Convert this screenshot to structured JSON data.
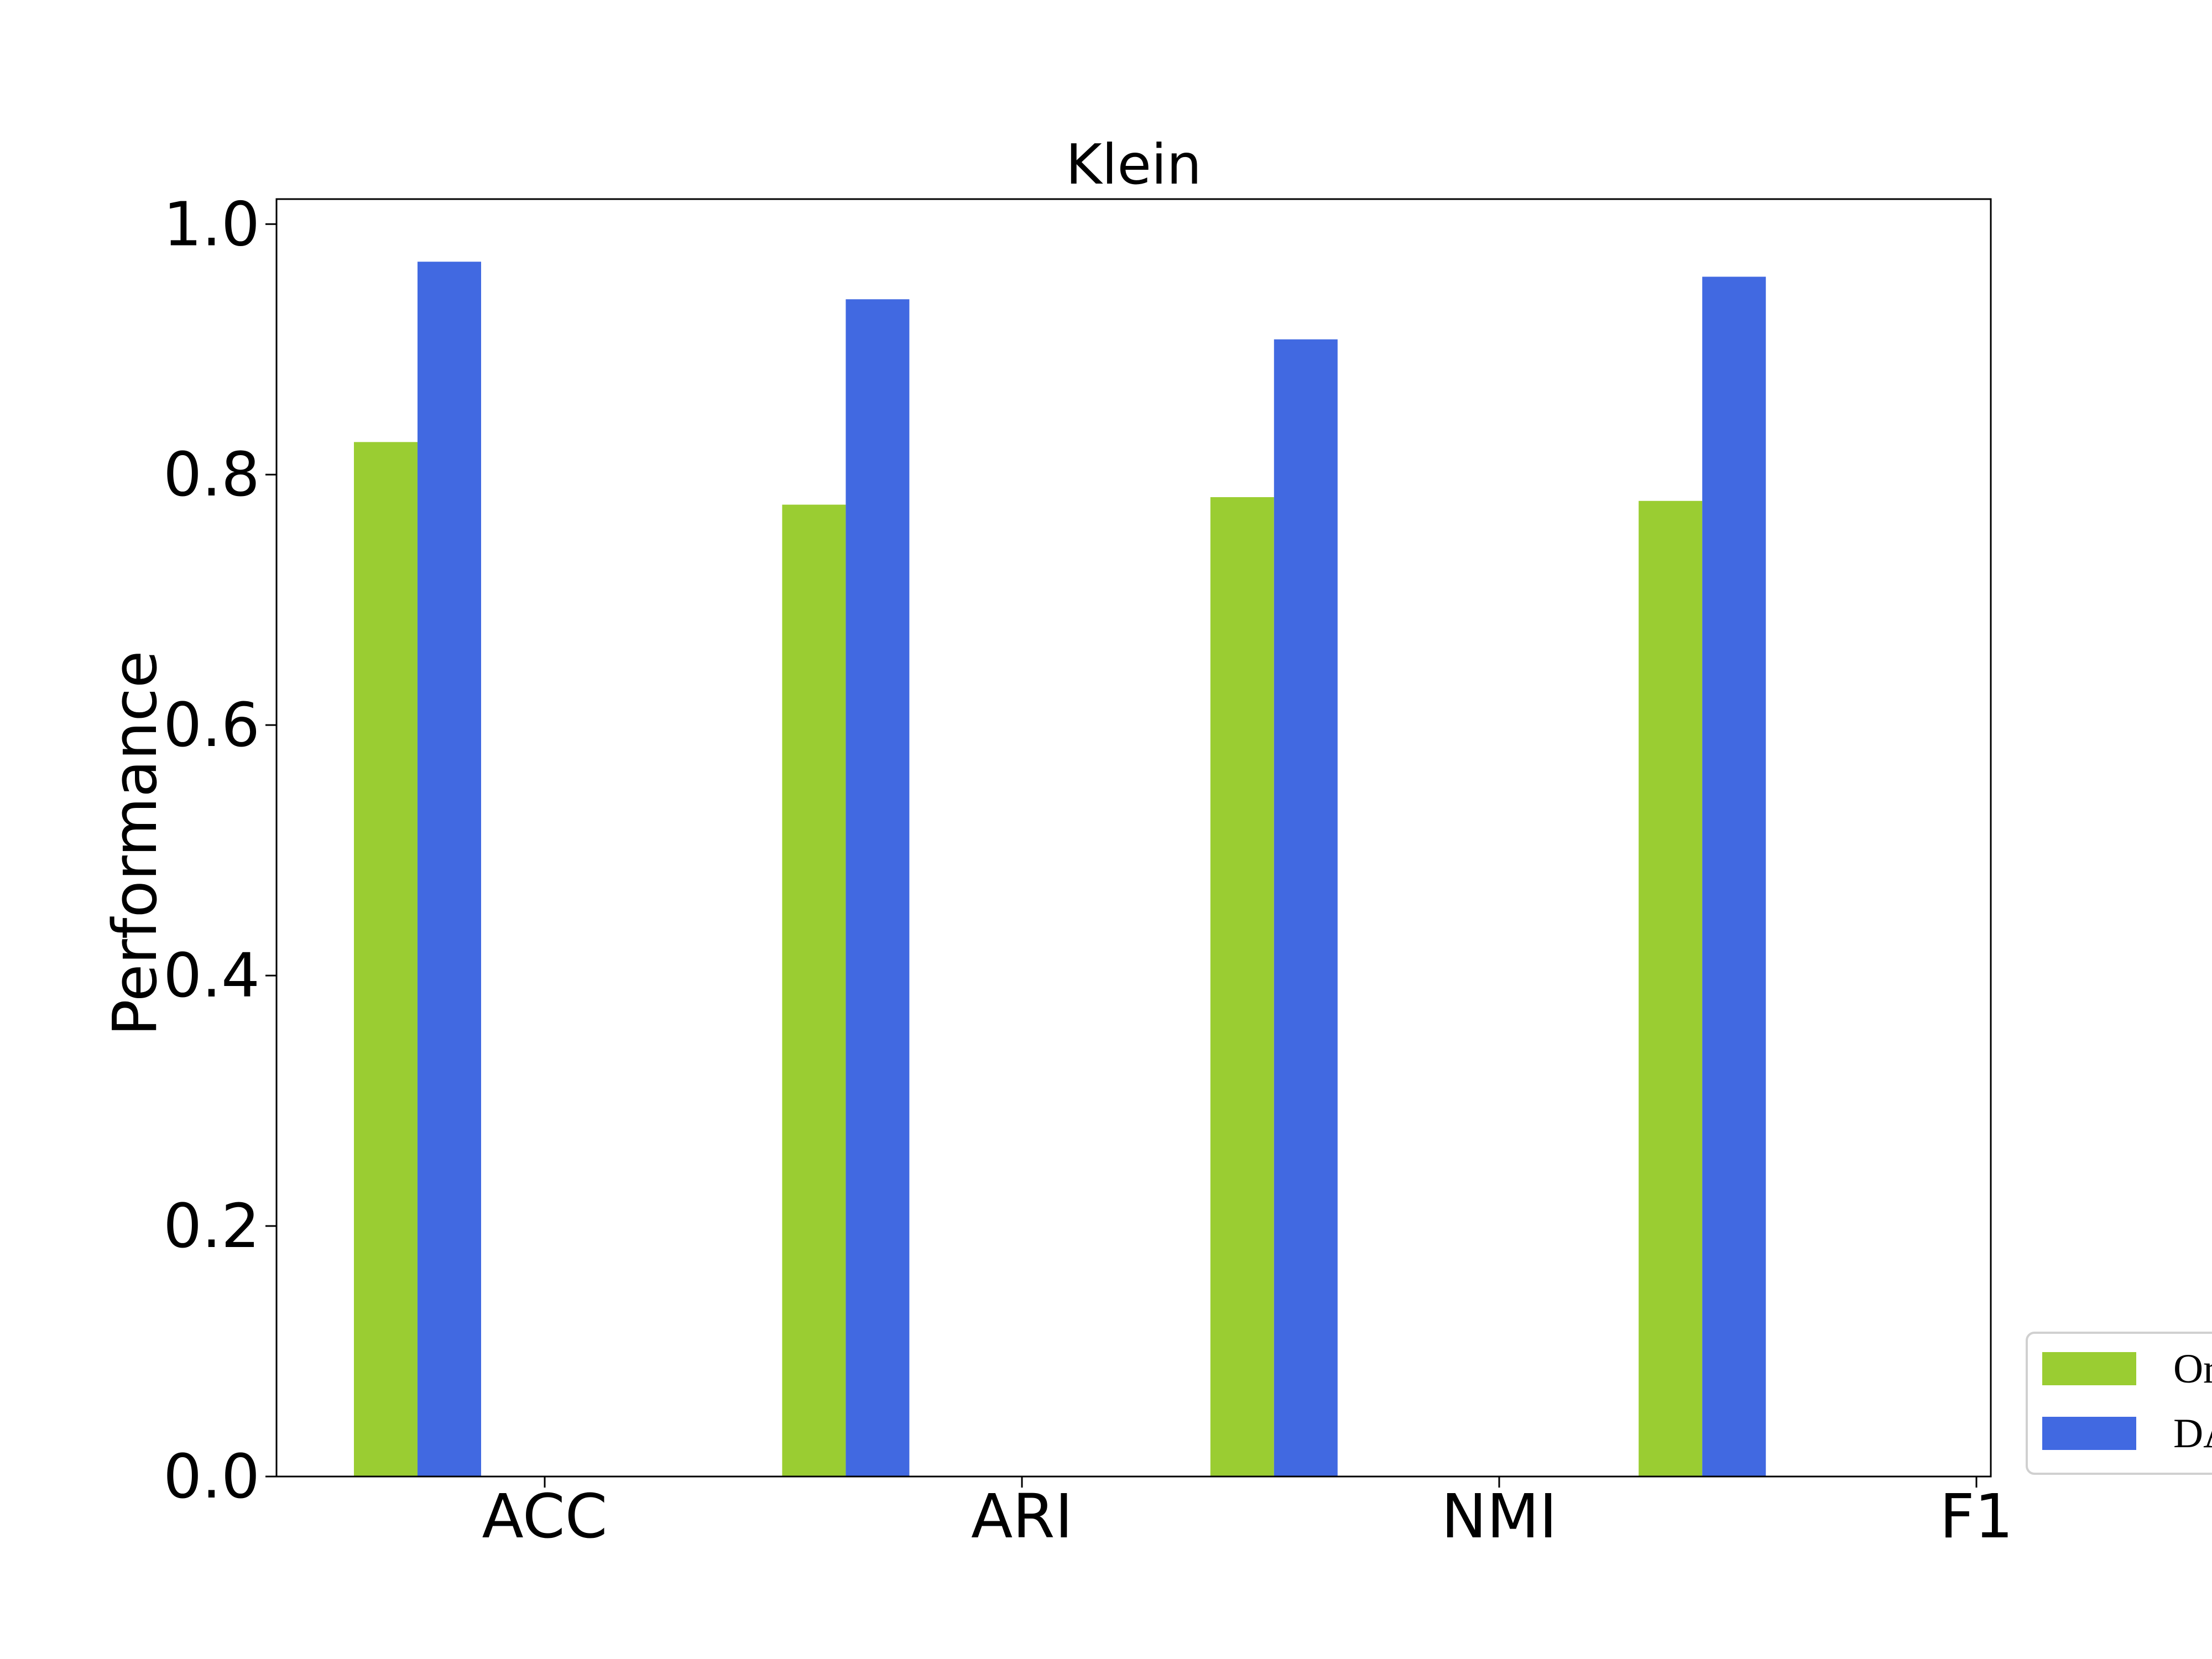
{
  "chart_data": {
    "type": "bar",
    "title": "Klein",
    "xlabel": "",
    "ylabel": "Performance",
    "categories": [
      "ACC",
      "ARI",
      "NMI",
      "F1"
    ],
    "series": [
      {
        "name": "Or",
        "color": "#9acd32",
        "values": [
          0.826,
          0.776,
          0.782,
          0.779
        ]
      },
      {
        "name": "DA",
        "color": "#4169e1",
        "values": [
          0.97,
          0.94,
          0.908,
          0.958
        ]
      }
    ],
    "ylim": [
      0,
      1.02
    ],
    "yticks": [
      "0.0",
      "0.2",
      "0.4",
      "0.6",
      "0.8",
      "1.0"
    ],
    "grid": false,
    "legend_position": "lower-right, outside plot"
  }
}
